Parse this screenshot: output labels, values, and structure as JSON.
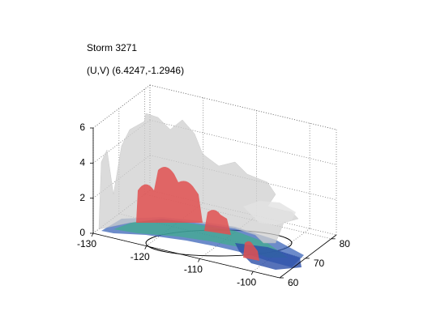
{
  "chart_data": {
    "type": "surface3d",
    "title": "Storm 3271",
    "subtitle": "(U,V) (6.4247,-1.2946)",
    "xlim": [
      -130,
      -95
    ],
    "xticks": [
      -130,
      -120,
      -110,
      -100
    ],
    "ylim": [
      60,
      82
    ],
    "yticks": [
      60,
      70,
      80
    ],
    "zlim": [
      0,
      6
    ],
    "zticks": [
      0,
      2,
      4,
      6
    ],
    "grid": true
  }
}
